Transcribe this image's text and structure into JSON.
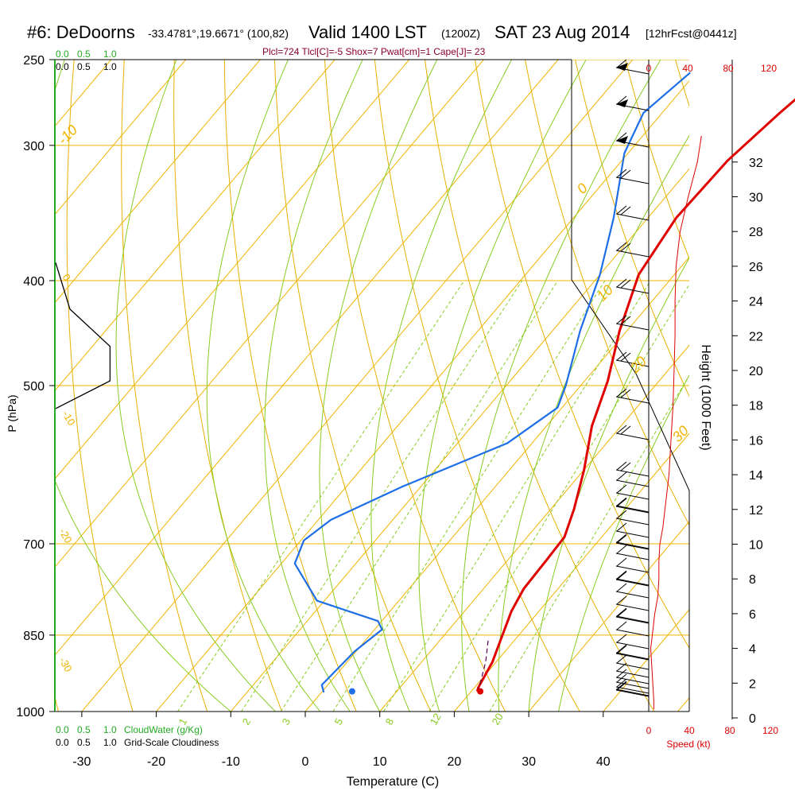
{
  "header": {
    "station": "#6: DeDoorns",
    "coords": "-33.4781°,19.6671° (100,82)",
    "valid": "Valid 1400 LST",
    "zulu": "(1200Z)",
    "date": "SAT 23 Aug 2014",
    "forecast": "[12hrFcst@0441z]",
    "params": "Plcl=724 Tlcl[C]=-5 Shox=7 Pwat[cm]=1 Cape[J]= 23"
  },
  "axes": {
    "ylabel": "P (hPa)",
    "xlabel": "Temperature (C)",
    "height_label": "Height (1000 Feet)",
    "speed_label": "Speed (kt)",
    "cloudwater_label": "CloudWater (g/Kg)",
    "cloudiness_label": "Grid-Scale Cloudiness",
    "scale_ticks": [
      "0.0",
      "0.5",
      "1.0"
    ],
    "speed_ticks": [
      "0",
      "40",
      "80",
      "120"
    ]
  },
  "colors": {
    "temperature": "#e00000",
    "dewpoint": "#1e6ee8",
    "isotherm": "#f0b400",
    "dry_adiabat": "#e8b000",
    "moist_adiabat": "#88cc22",
    "mixing_ratio": "#88cc22",
    "cloudwater": "#22aa22",
    "speed": "#dd0000",
    "params": "#8a0030"
  },
  "chart_data": {
    "type": "line",
    "title": "Skew-T log-P sounding",
    "x_ticks": [
      -30,
      -20,
      -10,
      0,
      10,
      20,
      30,
      40
    ],
    "pressure_ticks": [
      250,
      300,
      400,
      500,
      700,
      850,
      1000
    ],
    "height_ticks_kft": [
      0,
      2,
      4,
      6,
      8,
      10,
      12,
      14,
      16,
      18,
      20,
      22,
      24,
      26,
      28,
      30,
      32
    ],
    "dry_adiabat_labels": [
      "-10",
      "0",
      "10",
      "20",
      "30"
    ],
    "moist_adiabat_labels": [
      "-20",
      "-10",
      "0",
      "10",
      "20"
    ],
    "mixing_ratio_labels": [
      "1",
      "2",
      "3",
      "5",
      "8",
      "12",
      "20"
    ],
    "series": [
      {
        "name": "Temperature",
        "points": [
          [
            -2.5,
            257
          ],
          [
            -4.2,
            280
          ],
          [
            -5.8,
            310
          ],
          [
            -6.2,
            350
          ],
          [
            -4.8,
            395
          ],
          [
            -1.0,
            445
          ],
          [
            3.1,
            495
          ],
          [
            6.1,
            545
          ],
          [
            10.0,
            598
          ],
          [
            13.1,
            650
          ],
          [
            15.0,
            690
          ],
          [
            15.2,
            725
          ],
          [
            15.4,
            770
          ],
          [
            16.3,
            808
          ],
          [
            17.8,
            850
          ],
          [
            19.5,
            900
          ],
          [
            20.5,
            950
          ],
          [
            20.8,
            958
          ]
        ]
      },
      {
        "name": "Dewpoint",
        "points": [
          [
            -20.8,
            257
          ],
          [
            -22.5,
            280
          ],
          [
            -20.5,
            305
          ],
          [
            -14.6,
            350
          ],
          [
            -10.0,
            395
          ],
          [
            -6.3,
            445
          ],
          [
            -2.0,
            500
          ],
          [
            -0.6,
            524
          ],
          [
            -3.3,
            565
          ],
          [
            -12.5,
            620
          ],
          [
            -18.3,
            665
          ],
          [
            -19.6,
            695
          ],
          [
            -18.2,
            730
          ],
          [
            -11.0,
            790
          ],
          [
            -0.5,
            825
          ],
          [
            1.0,
            840
          ],
          [
            -0.2,
            880
          ],
          [
            -0.8,
            945
          ],
          [
            0.3,
            960
          ]
        ]
      },
      {
        "name": "Parcel",
        "points": [
          [
            16.5,
            860
          ],
          [
            18.6,
            900
          ],
          [
            20.8,
            955
          ]
        ]
      }
    ],
    "surface_points": {
      "temperature": 21.2,
      "dewpoint": 4.0
    },
    "wind_speed_kt": [
      [
        5,
        0.5
      ],
      [
        5,
        1
      ],
      [
        4,
        2
      ],
      [
        3,
        3
      ],
      [
        2,
        4
      ],
      [
        4,
        5
      ],
      [
        6,
        6
      ],
      [
        9,
        7
      ],
      [
        10,
        8
      ],
      [
        10,
        9
      ],
      [
        11,
        10
      ],
      [
        14,
        11
      ],
      [
        16,
        12
      ],
      [
        20,
        14
      ],
      [
        22,
        16
      ],
      [
        24,
        18
      ],
      [
        25,
        20
      ],
      [
        26,
        22
      ],
      [
        26,
        24
      ],
      [
        27,
        26
      ],
      [
        31,
        28
      ],
      [
        39,
        30
      ],
      [
        48,
        32
      ],
      [
        52,
        33.5
      ]
    ],
    "cloudiness": [
      [
        0.0,
        385
      ],
      [
        0.1,
        425
      ],
      [
        0.38,
        460
      ],
      [
        0.38,
        495
      ],
      [
        0.0,
        525
      ]
    ]
  }
}
